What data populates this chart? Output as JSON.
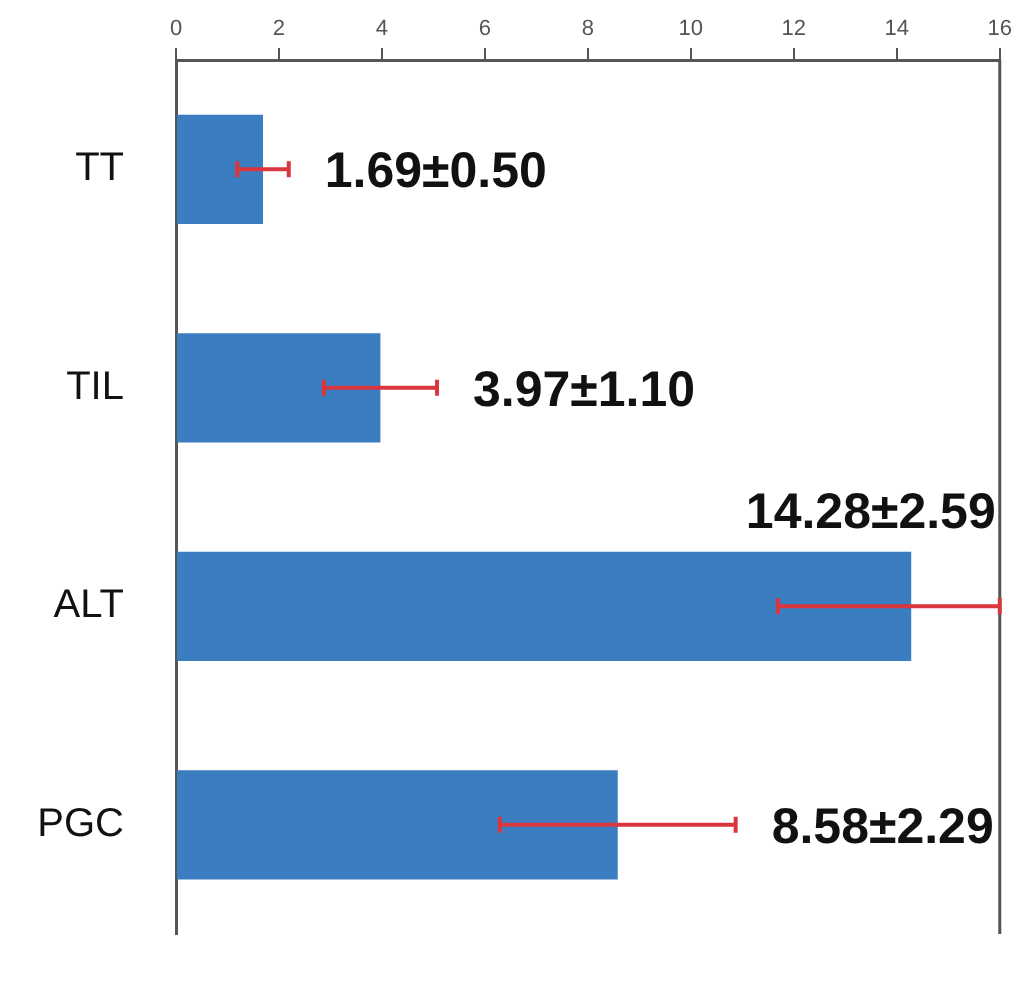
{
  "chart_data": {
    "type": "bar",
    "orientation": "horizontal",
    "categories": [
      "TT",
      "TIL",
      "ALT",
      "PGC"
    ],
    "values": [
      1.69,
      3.97,
      14.28,
      8.58
    ],
    "color": "#3a7dc0",
    "errors": [
      0.5,
      1.1,
      [
        11.69,
        16
      ],
      2.29
    ],
    "value_labels": [
      "1.69±0.50",
      "3.97±1.10",
      "14.28±2.59",
      "8.58±2.29"
    ],
    "xlim": [
      0,
      16
    ],
    "xticks": [
      0,
      2,
      4,
      6,
      8,
      10,
      12,
      14,
      16
    ],
    "grid": false,
    "legend": false
  }
}
